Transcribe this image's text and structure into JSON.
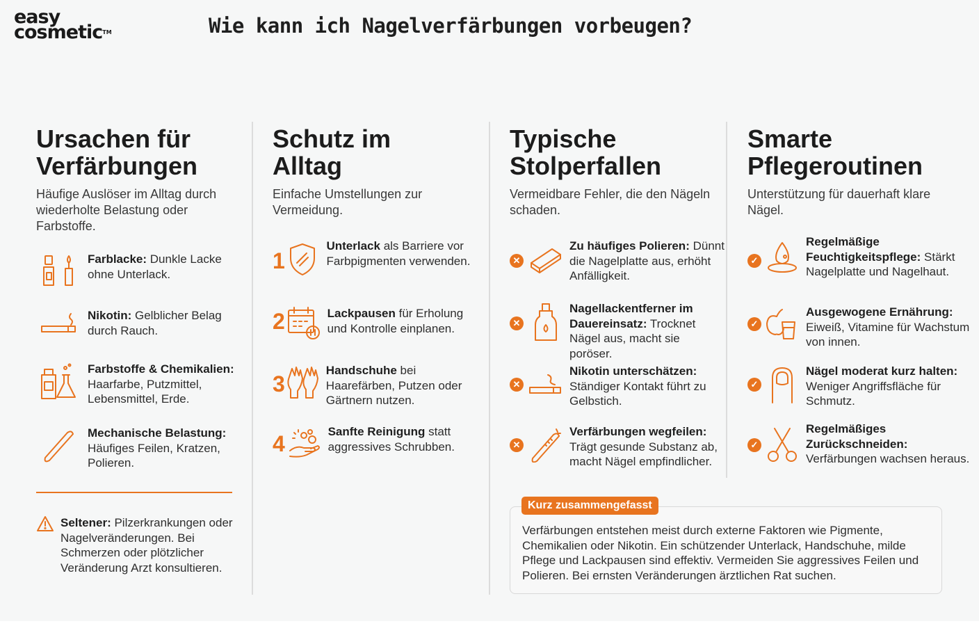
{
  "logo": {
    "line1": "easy",
    "line2": "cosmetic",
    "tm": "TM"
  },
  "page_title": "Wie kann ich Nagelverfärbungen vorbeugen?",
  "columns": [
    {
      "title": "Ursachen für\nVerfärbungen",
      "subtitle": "Häufige Auslöser im Alltag durch wiederholte Belastung oder Farbstoffe.",
      "items": [
        {
          "icon": "nail-polish-icon",
          "bold": "Farblacke:",
          "text": " Dunkle Lacke ohne Unterlack."
        },
        {
          "icon": "cigarette-icon",
          "bold": "Nikotin:",
          "text": " Gelblicher Belag durch Rauch."
        },
        {
          "icon": "chemicals-icon",
          "bold": "Farbstoffe & Chemikalien:",
          "text": " Haarfarbe, Putzmittel, Lebensmittel, Erde."
        },
        {
          "icon": "nail-file-icon",
          "bold": "Mechanische Belastung:",
          "text": " Häufiges Feilen, Kratzen, Polieren."
        }
      ],
      "note": {
        "icon": "warning-icon",
        "bold": "Seltener:",
        "text": " Pilzerkrankungen oder Nagelveränderungen. Bei Schmerzen oder plötzlicher Veränderung Arzt konsultieren."
      }
    },
    {
      "title": "Schutz im\nAlltag",
      "subtitle": "Einfache Umstellungen zur Vermeidung.",
      "items": [
        {
          "num": "1",
          "icon": "shield-icon",
          "bold": "Unterlack",
          "text": " als Barriere vor Farbpigmenten verwenden."
        },
        {
          "num": "2",
          "icon": "calendar-pause-icon",
          "bold": "Lackpausen",
          "text": " für Erholung und Kontrolle einplanen."
        },
        {
          "num": "3",
          "icon": "gloves-icon",
          "bold": "Handschuhe",
          "text": " bei Haarefärben, Putzen oder Gärtnern nutzen."
        },
        {
          "num": "4",
          "icon": "washing-hands-icon",
          "bold": "Sanfte Reinigung",
          "text": " statt aggressives Schrubben."
        }
      ]
    },
    {
      "title": "Typische\nStolperfallen",
      "subtitle": "Vermeidbare Fehler, die den Nägeln schaden.",
      "items": [
        {
          "mark": "✕",
          "icon": "polishing-block-icon",
          "bold": "Zu häufiges Polieren:",
          "text": " Dünnt die Nagelplatte aus, erhöht Anfälligkeit."
        },
        {
          "mark": "✕",
          "icon": "remover-bottle-icon",
          "bold": "Nagellackentferner im Dauereinsatz:",
          "text": " Trocknet Nägel aus, macht sie poröser."
        },
        {
          "mark": "✕",
          "icon": "cigarette-icon",
          "bold": "Nikotin unterschätzen:",
          "text": " Ständiger Kontakt führt zu Gelbstich."
        },
        {
          "mark": "✕",
          "icon": "nail-file-icon",
          "bold": "Verfärbungen wegfeilen:",
          "text": " Trägt gesunde Substanz ab, macht Nägel empfindlicher."
        }
      ]
    },
    {
      "title": "Smarte\nPflegeroutinen",
      "subtitle": "Unterstützung für dauerhaft klare Nägel.",
      "items": [
        {
          "mark": "✓",
          "icon": "oil-drop-icon",
          "bold": "Regelmäßige Feuchtigkeitspflege:",
          "text": " Stärkt Nagelplatte und Nagelhaut."
        },
        {
          "mark": "✓",
          "icon": "apple-glass-icon",
          "bold": "Ausgewogene Ernährung:",
          "text": " Eiweiß, Vitamine für Wachstum von innen."
        },
        {
          "mark": "✓",
          "icon": "short-nail-icon",
          "bold": "Nägel moderat kurz halten:",
          "text": " Weniger Angriffsfläche für Schmutz."
        },
        {
          "mark": "✓",
          "icon": "scissors-icon",
          "bold": "Regelmäßiges Zurückschneiden:",
          "text": " Verfärbungen wachsen heraus."
        }
      ]
    }
  ],
  "summary": {
    "badge": "Kurz zusammengefasst",
    "text": "Verfärbungen entstehen meist durch externe Faktoren wie Pigmente, Chemikalien oder Nikotin. Ein schützender Unterlack, Handschuhe, milde Pflege und Lackpausen sind effektiv. Vermeiden Sie aggressives Feilen und Polieren. Bei ernsten Veränderungen ärztlichen Rat suchen."
  },
  "colors": {
    "accent": "#e8741f",
    "background": "#f6f7f7",
    "text": "#2b2b2b"
  }
}
